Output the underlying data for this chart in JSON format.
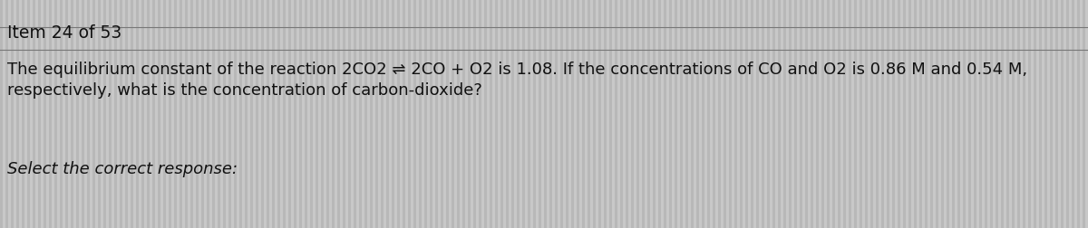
{
  "background_color": "#c8c8c8",
  "item_label": "Item 24 of 53",
  "question_line1": "The equilibrium constant of the reaction 2CO2 ⇌ 2CO + O2 is 1.08. If the concentrations of CO and O2 is 0.86 M and 0.54 M,",
  "question_line2": "respectively, what is the concentration of carbon-dioxide?",
  "instruction": "Select the correct response:",
  "text_color": "#111111",
  "line_color": "#777777",
  "font_size_item": 13.5,
  "font_size_question": 13.0,
  "font_size_instruction": 13.0,
  "stripe_color": "#b8b8b8",
  "stripe_alpha": 0.4
}
